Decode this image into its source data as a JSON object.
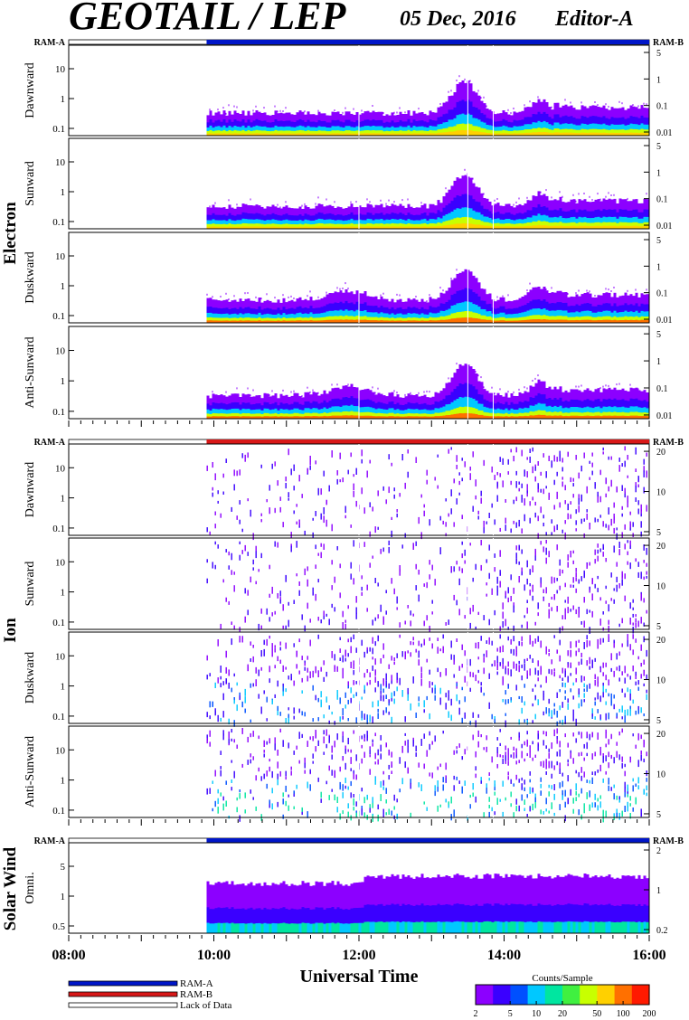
{
  "header": {
    "title": "GEOTAIL / LEP",
    "date": "05 Dec, 2016",
    "editor": "Editor-A"
  },
  "chart_data": {
    "type": "heatmap",
    "xlabel": "Universal Time",
    "x_ticks": [
      "08:00",
      "10:00",
      "12:00",
      "14:00",
      "16:00"
    ],
    "x_range_hours": [
      8,
      16
    ],
    "data_start_hour": 9.9,
    "groups": [
      {
        "name": "Electron",
        "ram_left": "RAM-A",
        "ram_right": "RAM-B",
        "ram_state": "RAM-A",
        "panels": [
          {
            "name": "Dawnward",
            "left_ticks": [
              "10",
              "1",
              "0.1"
            ],
            "right_ticks": [
              "5",
              "1",
              "0.1",
              "0.01"
            ]
          },
          {
            "name": "Sunward",
            "left_ticks": [
              "10",
              "1",
              "0.1"
            ],
            "right_ticks": [
              "5",
              "1",
              "0.1",
              "0.01"
            ]
          },
          {
            "name": "Duskward",
            "left_ticks": [
              "10",
              "1",
              "0.1"
            ],
            "right_ticks": [
              "5",
              "1",
              "0.1",
              "0.01"
            ]
          },
          {
            "name": "Anti-Sunward",
            "left_ticks": [
              "10",
              "1",
              "0.1"
            ],
            "right_ticks": [
              "5",
              "1",
              "0.1",
              "0.01"
            ]
          }
        ]
      },
      {
        "name": "Ion",
        "ram_left": "RAM-A",
        "ram_right": "RAM-B",
        "ram_state": "RAM-B",
        "panels": [
          {
            "name": "Dawnward",
            "left_ticks": [
              "10",
              "1",
              "0.1"
            ],
            "right_ticks": [
              "20",
              "10",
              "5"
            ]
          },
          {
            "name": "Sunward",
            "left_ticks": [
              "10",
              "1",
              "0.1"
            ],
            "right_ticks": [
              "20",
              "10",
              "5"
            ]
          },
          {
            "name": "Duskward",
            "left_ticks": [
              "10",
              "1",
              "0.1"
            ],
            "right_ticks": [
              "20",
              "10",
              "5"
            ]
          },
          {
            "name": "Anti-Sunward",
            "left_ticks": [
              "10",
              "1",
              "0.1"
            ],
            "right_ticks": [
              "20",
              "10",
              "5"
            ]
          }
        ]
      },
      {
        "name": "Solar Wind",
        "ram_left": "RAM-A",
        "ram_right": "RAM-B",
        "ram_state": "RAM-A",
        "panels": [
          {
            "name": "Omni.",
            "left_ticks": [
              "5",
              "1",
              "0.5"
            ],
            "right_ticks": [
              "2",
              "1",
              "0.2"
            ]
          }
        ]
      }
    ],
    "legend": {
      "items": [
        "RAM-A",
        "RAM-B",
        "Lack of Data"
      ],
      "colors": [
        "#0016c8",
        "#d81818",
        "#ffffff"
      ]
    },
    "colorbar": {
      "title": "Counts/Sample",
      "ticks": [
        "2",
        "5",
        "10",
        "20",
        "50",
        "100",
        "200"
      ],
      "colors": [
        "#8c00ff",
        "#3a00ff",
        "#0050ff",
        "#00c8ff",
        "#00e6a0",
        "#40f040",
        "#c8ff00",
        "#ffd000",
        "#ff7000",
        "#ff1a00"
      ]
    }
  }
}
